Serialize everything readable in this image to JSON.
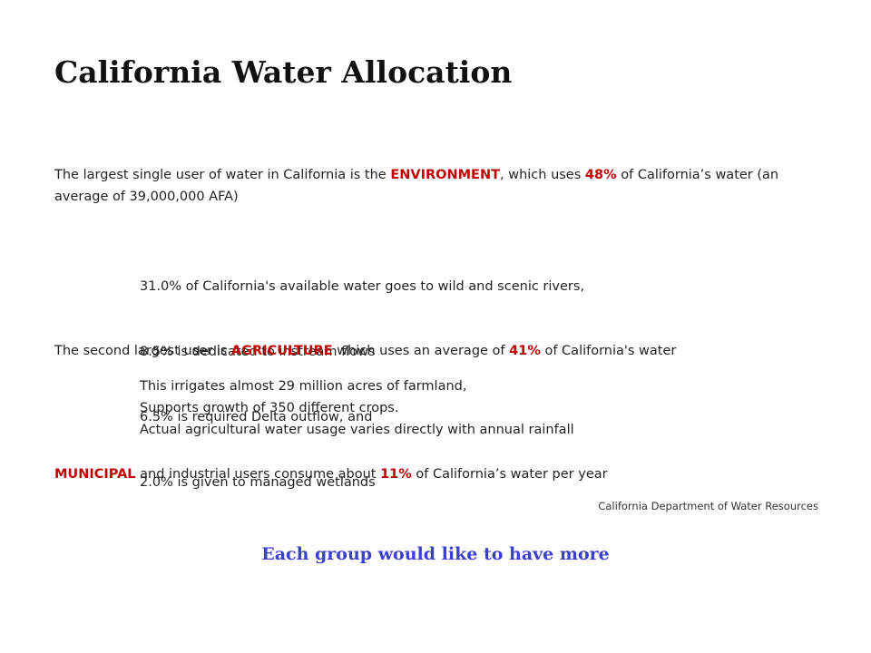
{
  "title": "California Water Allocation",
  "environment": {
    "text_1": "The largest single user of water in California is the ",
    "highlight_1": "ENVIRONMENT",
    "text_2": ", which uses ",
    "highlight_2": "48%",
    "text_3": " of California’s water (an average of 39,000,000 AFA)",
    "items": [
      "31.0% of California's available water goes to wild and scenic rivers,",
      "  8.5% is dedicated to instream flows",
      "  6.5% is required Delta outflow, and",
      "  2.0% is given to managed wetlands"
    ]
  },
  "agriculture": {
    "text_1": "The second largest user is ",
    "highlight_1": "AGRICULTURE",
    "text_2": " which uses an average of ",
    "highlight_2": "41%",
    "text_3": " of California's water",
    "items": [
      "This irrigates almost 29 million acres of farmland,",
      "Supports growth of 350 different crops.",
      "Actual agricultural water usage varies directly with annual rainfall"
    ]
  },
  "municipal": {
    "highlight_1": "MUNICIPAL",
    "text_1": " and industrial users consume about ",
    "highlight_2": "11%",
    "text_2": " of California’s water per year"
  },
  "source": "California Department of Water Resources",
  "footer": "Each group would like to have more",
  "colors": {
    "highlight": "#c00000",
    "footer": "#3b3fcf"
  }
}
